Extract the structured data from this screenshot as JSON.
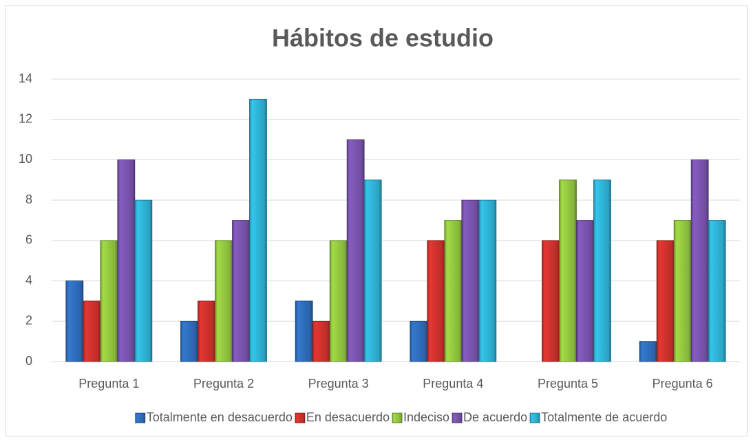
{
  "chart_data": {
    "type": "bar",
    "title": "Hábitos de estudio",
    "categories": [
      "Pregunta 1",
      "Pregunta 2",
      "Pregunta 3",
      "Pregunta 4",
      "Pregunta 5",
      "Pregunta 6"
    ],
    "series": [
      {
        "name": "Totalmente en desacuerdo",
        "color": "#2f6ebd",
        "values": [
          4,
          2,
          3,
          2,
          0,
          1
        ]
      },
      {
        "name": "En desacuerdo",
        "color": "#d1322d",
        "values": [
          3,
          3,
          2,
          6,
          6,
          6
        ]
      },
      {
        "name": "Indeciso",
        "color": "#93c840",
        "values": [
          6,
          6,
          6,
          7,
          9,
          7
        ]
      },
      {
        "name": "De acuerdo",
        "color": "#7b54b0",
        "values": [
          10,
          7,
          11,
          8,
          7,
          10
        ]
      },
      {
        "name": "Totalmente de acuerdo",
        "color": "#2fb4d7",
        "values": [
          8,
          13,
          9,
          8,
          9,
          7
        ]
      }
    ],
    "ylim": [
      0,
      14
    ],
    "yticks": [
      0,
      2,
      4,
      6,
      8,
      10,
      12,
      14
    ],
    "grid": true,
    "legend": "bottom"
  }
}
